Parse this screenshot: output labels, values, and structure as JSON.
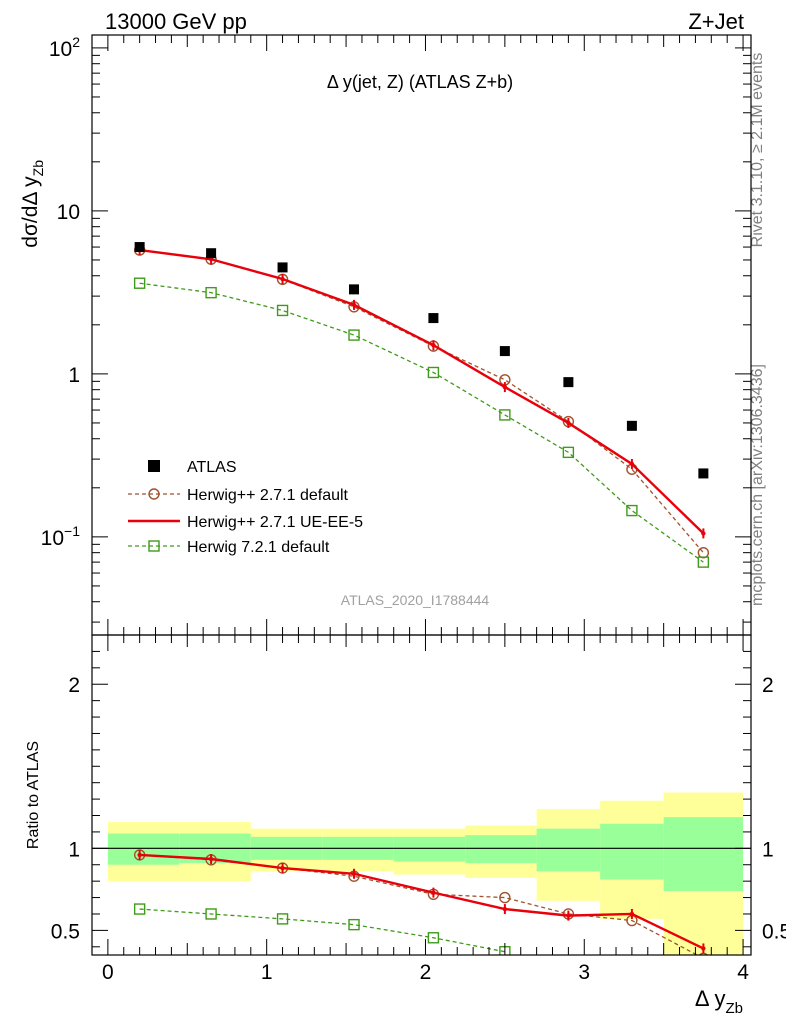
{
  "header": {
    "energy": "13000 GeV pp",
    "process": "Z+Jet",
    "rivet": "Rivet 3.1.10, ≥ 2.1M events",
    "mcplots": "mcplots.cern.ch [arXiv:1306.3436]"
  },
  "chart_data": [
    {
      "type": "scatter",
      "title": "Δ y(jet, Z) (ATLAS Z+b)",
      "watermark": "ATLAS_2020_I1788444",
      "xlabel": "Δ y",
      "xlabel_sub": "Zb",
      "ylabel": "dσ/dΔ y",
      "ylabel_sub": "Zb",
      "yscale": "log",
      "ylim": [
        0.025,
        120
      ],
      "xlim": [
        -0.1,
        4.05
      ],
      "y_ticks": [
        {
          "value": 100,
          "label": "10",
          "sup": "2"
        },
        {
          "value": 10,
          "label": "10",
          "sup": ""
        },
        {
          "value": 1,
          "label": "1",
          "sup": ""
        },
        {
          "value": 0.1,
          "label": "10",
          "sup": "−1"
        }
      ],
      "legend": [
        "ATLAS",
        "Herwig++ 2.7.1 default",
        "Herwig++ 2.7.1 UE-EE-5",
        "Herwig 7.2.1 default"
      ],
      "x": [
        0.2,
        0.65,
        1.1,
        1.55,
        2.05,
        2.5,
        2.9,
        3.3,
        3.75
      ],
      "series": [
        {
          "name": "ATLAS",
          "color": "#000000",
          "marker": "filled-square",
          "values": [
            6.0,
            5.5,
            4.5,
            3.3,
            2.2,
            1.38,
            0.89,
            0.48,
            0.245
          ]
        },
        {
          "name": "Herwig++ 2.7.1 default",
          "color": "#a0522d",
          "marker": "open-circle",
          "dash": "dashed",
          "values": [
            5.75,
            5.05,
            3.8,
            2.58,
            1.48,
            0.92,
            0.51,
            0.26,
            0.08
          ]
        },
        {
          "name": "Herwig++ 2.7.1 UE-EE-5",
          "color": "#e8000b",
          "marker": "none",
          "dash": "solid",
          "values": [
            5.75,
            5.05,
            3.82,
            2.65,
            1.5,
            0.83,
            0.5,
            0.28,
            0.105
          ]
        },
        {
          "name": "Herwig 7.2.1 default",
          "color": "#3f9b1a",
          "marker": "open-square",
          "dash": "dashed",
          "values": [
            3.6,
            3.15,
            2.45,
            1.73,
            1.02,
            0.56,
            0.33,
            0.145,
            0.07
          ]
        }
      ]
    },
    {
      "type": "line",
      "ylabel": "Ratio to ATLAS",
      "xlabel": "Δ y",
      "xlabel_sub": "Zb",
      "ylim": [
        0.35,
        2.3
      ],
      "xlim": [
        -0.1,
        4.05
      ],
      "x_ticks": [
        0,
        1,
        2,
        3,
        4
      ],
      "y_ticks": [
        0.5,
        1,
        2
      ],
      "x": [
        0.2,
        0.65,
        1.1,
        1.55,
        2.05,
        2.5,
        2.9,
        3.3,
        3.75
      ],
      "bins": [
        [
          0.0,
          0.45
        ],
        [
          0.45,
          0.9
        ],
        [
          0.9,
          1.35
        ],
        [
          1.35,
          1.8
        ],
        [
          1.8,
          2.25
        ],
        [
          2.25,
          2.7
        ],
        [
          2.7,
          3.1
        ],
        [
          3.1,
          3.5
        ],
        [
          3.5,
          4.0
        ]
      ],
      "band_inner": [
        [
          0.9,
          1.09
        ],
        [
          0.91,
          1.09
        ],
        [
          0.93,
          1.07
        ],
        [
          0.93,
          1.07
        ],
        [
          0.92,
          1.07
        ],
        [
          0.91,
          1.08
        ],
        [
          0.86,
          1.12
        ],
        [
          0.81,
          1.15
        ],
        [
          0.74,
          1.19
        ]
      ],
      "band_outer": [
        [
          0.8,
          1.16
        ],
        [
          0.8,
          1.16
        ],
        [
          0.86,
          1.12
        ],
        [
          0.86,
          1.12
        ],
        [
          0.84,
          1.12
        ],
        [
          0.82,
          1.14
        ],
        [
          0.68,
          1.24
        ],
        [
          0.57,
          1.29
        ],
        [
          0.33,
          1.34
        ]
      ],
      "series": [
        {
          "name": "Herwig++ 2.7.1 default",
          "color": "#a0522d",
          "marker": "open-circle",
          "dash": "dashed",
          "values": [
            0.96,
            0.93,
            0.88,
            0.83,
            0.72,
            0.7,
            0.6,
            0.56,
            0.33
          ]
        },
        {
          "name": "Herwig++ 2.7.1 UE-EE-5",
          "color": "#e8000b",
          "marker": "none",
          "dash": "solid",
          "values": [
            0.96,
            0.935,
            0.88,
            0.845,
            0.73,
            0.63,
            0.59,
            0.6,
            0.39
          ]
        },
        {
          "name": "Herwig 7.2.1 default",
          "color": "#3f9b1a",
          "marker": "open-square",
          "dash": "dashed",
          "values": [
            0.63,
            0.6,
            0.57,
            0.535,
            0.455,
            0.37,
            null,
            null,
            null
          ]
        }
      ]
    }
  ]
}
